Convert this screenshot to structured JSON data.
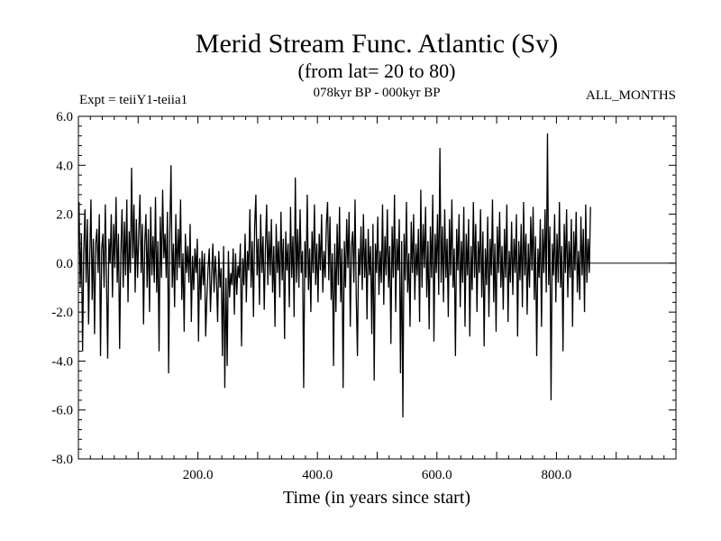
{
  "chart_data": {
    "type": "line",
    "title": "Merid Stream Func. Atlantic (Sv)",
    "subtitle": "(from lat= 20 to 80)",
    "annotations": {
      "experiment": "Expt = teiiY1-teiia1",
      "period": "078kyr BP - 000kyr BP",
      "months": "ALL_MONTHS"
    },
    "xlabel": "Time (in years since start)",
    "ylabel": "",
    "xlim": [
      0,
      1000
    ],
    "ylim": [
      -8.0,
      6.0
    ],
    "xticks": [
      200,
      400,
      600,
      800
    ],
    "xtick_labels": [
      "200.0",
      "400.0",
      "600.0",
      "800.0"
    ],
    "yticks": [
      6,
      4,
      2,
      0,
      -2,
      -4,
      -6,
      -8
    ],
    "ytick_labels": [
      "6.0",
      "4.0",
      "2.0",
      "0.0",
      "-2.0",
      "-4.0",
      "-6.0",
      "-8.0"
    ],
    "zero_line": true,
    "grid": false,
    "series": [
      {
        "x_start": 1,
        "x_step": 2,
        "values": [
          2.5,
          -1.0,
          1.2,
          -3.6,
          0.5,
          2.2,
          -0.8,
          1.8,
          -2.5,
          0.3,
          2.6,
          -1.5,
          1.0,
          -2.9,
          0.8,
          1.4,
          -0.4,
          2.0,
          -3.8,
          0.6,
          1.2,
          -1.0,
          2.4,
          -0.6,
          -3.9,
          1.0,
          0.0,
          2.0,
          -1.4,
          1.6,
          -0.2,
          2.7,
          -0.8,
          1.2,
          -3.5,
          0.4,
          2.2,
          -1.0,
          1.7,
          -0.5,
          2.6,
          -1.6,
          1.3,
          -0.4,
          3.9,
          0.2,
          2.4,
          -1.2,
          1.8,
          -0.6,
          1.2,
          2.8,
          -0.4,
          1.6,
          -2.5,
          0.8,
          2.0,
          -1.0,
          1.4,
          -2.0,
          2.3,
          -0.5,
          1.1,
          -0.8,
          2.7,
          -1.2,
          0.9,
          -3.6,
          1.9,
          -0.6,
          3.0,
          0.2,
          1.2,
          -0.6,
          2.1,
          -4.5,
          1.3,
          4.0,
          -1.0,
          0.8,
          -1.8,
          2.0,
          -0.7,
          1.4,
          -0.2,
          2.6,
          -1.5,
          0.4,
          -2.8,
          1.2,
          -0.4,
          0.7,
          -0.8,
          1.6,
          -2.4,
          0.3,
          -1.1,
          0.6,
          -0.4,
          1.0,
          -3.2,
          0.2,
          -1.5,
          0.5,
          -0.9,
          0.4,
          -3.0,
          -1.4,
          -0.2,
          0.6,
          -2.0,
          -0.5,
          0.8,
          -1.2,
          0.3,
          -0.6,
          -2.4,
          0.5,
          -1.0,
          -0.2,
          -3.8,
          0.7,
          -5.1,
          -0.6,
          -4.2,
          0.5,
          -1.4,
          -0.4,
          -0.9,
          0.6,
          -2.1,
          0.4,
          -1.3,
          -0.1,
          -0.6,
          0.8,
          -3.4,
          0.2,
          -0.9,
          1.2,
          -1.6,
          0.5,
          -0.3,
          2.2,
          -1.0,
          0.9,
          -2.2,
          1.5,
          2.8,
          -0.5,
          1.0,
          -1.7,
          2.0,
          -0.4,
          1.1,
          -1.9,
          0.6,
          2.4,
          -0.9,
          1.3,
          -0.5,
          1.8,
          -1.2,
          0.7,
          -2.6,
          1.6,
          -0.4,
          0.9,
          -1.4,
          2.1,
          -0.7,
          1.0,
          -3.1,
          1.3,
          -0.3,
          0.8,
          -1.8,
          2.3,
          -0.6,
          1.1,
          -2.2,
          3.5,
          -0.8,
          1.4,
          -1.0,
          2.2,
          -0.4,
          0.5,
          -5.1,
          0.9,
          -0.6,
          2.8,
          -1.1,
          0.6,
          -2.0,
          1.3,
          -0.4,
          2.4,
          -0.9,
          0.8,
          -1.6,
          1.2,
          -0.3,
          2.0,
          -1.2,
          0.5,
          -0.6,
          1.6,
          2.5,
          -0.7,
          1.9,
          -1.5,
          0.4,
          -4.2,
          0.8,
          -2.0,
          1.6,
          -0.9,
          2.3,
          -1.6,
          0.6,
          -5.1,
          0.9,
          -1.0,
          1.8,
          -0.2,
          2.1,
          -2.6,
          0.7,
          1.3,
          -0.8,
          2.6,
          -1.4,
          -3.8,
          0.6,
          -0.5,
          1.5,
          -1.1,
          2.0,
          -0.6,
          1.0,
          -2.3,
          1.4,
          -0.5,
          0.7,
          -2.9,
          1.6,
          -4.8,
          0.8,
          -0.4,
          1.9,
          -1.3,
          0.5,
          -0.8,
          2.4,
          -1.7,
          1.1,
          -0.5,
          2.2,
          -1.0,
          0.7,
          -3.3,
          1.5,
          -0.6,
          2.8,
          -2.0,
          1.0,
          -0.3,
          1.8,
          -4.5,
          0.9,
          -6.3,
          1.2,
          -0.7,
          2.5,
          -1.2,
          0.4,
          -2.6,
          1.7,
          -0.4,
          2.0,
          -1.5,
          0.8,
          -0.5,
          1.4,
          -2.4,
          3.0,
          -1.0,
          1.6,
          -0.2,
          2.3,
          -1.4,
          0.9,
          -2.7,
          1.5,
          -0.6,
          2.8,
          -3.2,
          1.2,
          -0.4,
          2.0,
          -1.3,
          4.7,
          -0.8,
          1.5,
          -1.6,
          2.2,
          -0.6,
          1.0,
          -2.2,
          1.8,
          -0.5,
          2.6,
          -1.0,
          0.6,
          -3.8,
          1.4,
          -0.3,
          2.0,
          -1.8,
          0.9,
          -0.8,
          2.3,
          -2.6,
          1.2,
          -0.5,
          1.8,
          -3.0,
          0.7,
          -1.1,
          2.5,
          -0.6,
          1.6,
          -2.0,
          0.9,
          -0.4,
          2.2,
          -1.4,
          1.3,
          -3.4,
          0.6,
          -0.9,
          1.9,
          -2.2,
          1.0,
          -0.5,
          2.6,
          -1.6,
          0.8,
          -2.8,
          1.5,
          -0.4,
          2.1,
          -1.0,
          0.7,
          -1.9,
          1.4,
          -0.6,
          2.4,
          -2.4,
          0.5,
          -0.8,
          1.7,
          -1.3,
          1.0,
          -0.4,
          2.0,
          -3.0,
          0.9,
          -0.7,
          1.6,
          -1.8,
          2.5,
          -0.5,
          1.2,
          -2.1,
          0.8,
          -1.0,
          1.9,
          -0.3,
          2.3,
          -1.5,
          1.1,
          -3.8,
          0.6,
          -0.6,
          1.8,
          -2.6,
          1.4,
          -0.4,
          2.2,
          -1.2,
          5.3,
          -0.9,
          1.5,
          -5.6,
          0.8,
          -0.5,
          2.0,
          -1.6,
          1.2,
          -0.8,
          2.5,
          -1.0,
          0.7,
          -3.6,
          1.6,
          -0.4,
          2.2,
          -1.4,
          0.9,
          -0.6,
          1.8,
          -2.6,
          1.3,
          -0.3,
          2.1,
          -1.2,
          0.5,
          -1.5,
          1.9,
          -0.5,
          1.4,
          -2.0,
          2.4,
          -0.8,
          1.0,
          -0.4,
          2.3
        ]
      }
    ]
  }
}
